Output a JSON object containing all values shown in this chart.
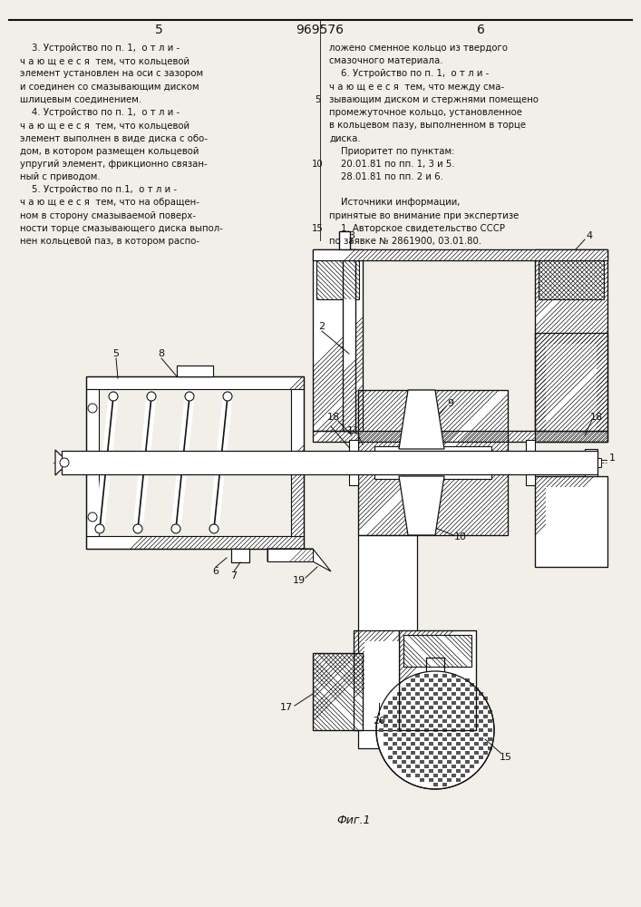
{
  "page_header": "969576",
  "col_left_num": "5",
  "col_right_num": "6",
  "bg_color": "#f2efe8",
  "text_color": "#111111",
  "line_color": "#111111",
  "fig_label": "Фиг.1",
  "left_column_text": [
    "    3. Устройство по п. 1,  о т л и -",
    "ч а ю щ е е с я  тем, что кольцевой",
    "элемент установлен на оси с зазором",
    "и соединен со смазывающим диском",
    "шлицевым соединением.",
    "    4. Устройство по п. 1,  о т л и -",
    "ч а ю щ е е с я  тем, что кольцевой",
    "элемент выполнен в виде диска с обо-",
    "дом, в котором размещен кольцевой",
    "упругий элемент, фрикционно связан-",
    "ный с приводом.",
    "    5. Устройство по п.1,  о т л и -",
    "ч а ю щ е е с я  тем, что на обращен-",
    "ном в сторону смазываемой поверх-",
    "ности торце смазывающего диска выпол-",
    "нен кольцевой паз, в котором распо-"
  ],
  "right_column_text": [
    "ложено сменное кольцо из твердого",
    "смазочного материала.",
    "    6. Устройство по п. 1,  о т л и -",
    "ч а ю щ е е с я  тем, что между сма-",
    "зывающим диском и стержнями помещено",
    "промежуточное кольцо, установленное",
    "в кольцевом пазу, выполненном в торце",
    "диска.",
    "    Приоритет по пунктам:",
    "    20.01.81 по пп. 1, 3 и 5.",
    "    28.01.81 по пп. 2 и 6.",
    "",
    "    Источники информации,",
    "принятые во внимание при экспертизе",
    "    1. Авторское свидетельство СССР",
    "по заявке № 2861900, 03.01.80."
  ]
}
